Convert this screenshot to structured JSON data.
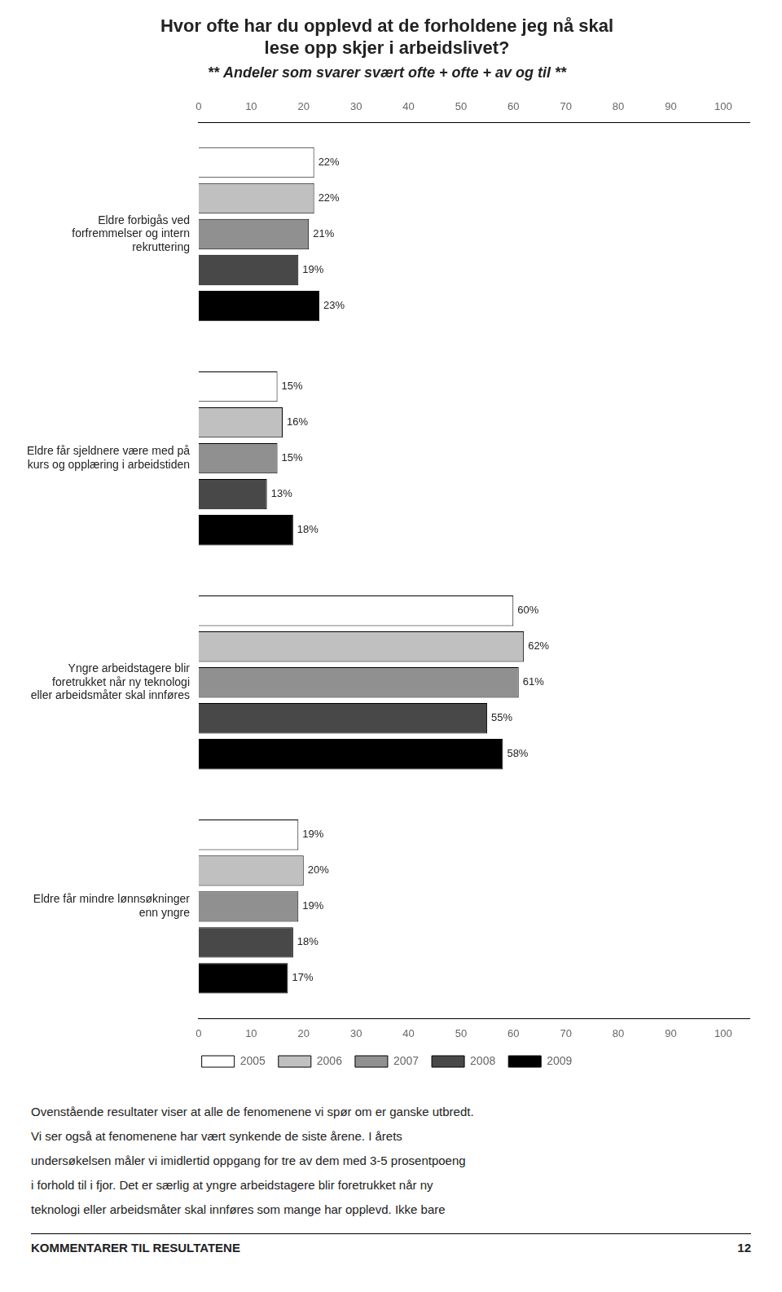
{
  "chart_data": {
    "type": "bar",
    "orientation": "horizontal",
    "title": [
      "Hvor ofte har du opplevd at de forholdene jeg nå skal",
      "lese opp skjer i arbeidslivet?"
    ],
    "subtitle": "** Andeler som svarer svært ofte + ofte + av og til **",
    "categories": [
      "Eldre forbigås ved\nforfremmelser og intern\nrekruttering",
      "Eldre får sjeldnere være med på\nkurs og opplæring i arbeidstiden",
      "Yngre arbeidstagere blir\nforetrukket når ny teknologi\neller arbeidsmåter skal innføres",
      "Eldre får mindre lønnsøkninger\nenn yngre"
    ],
    "series": [
      {
        "name": "2005",
        "color": "#ffffff",
        "values": [
          22,
          15,
          60,
          19
        ],
        "value_labels": [
          "22%",
          "15%",
          "60%",
          "19%"
        ]
      },
      {
        "name": "2006",
        "color": "#c0c0c0",
        "values": [
          22,
          16,
          62,
          20
        ],
        "value_labels": [
          "22%",
          "16%",
          "62%",
          "20%"
        ]
      },
      {
        "name": "2007",
        "color": "#909090",
        "values": [
          21,
          15,
          61,
          19
        ],
        "value_labels": [
          "21%",
          "15%",
          "61%",
          "19%"
        ]
      },
      {
        "name": "2008",
        "color": "#484848",
        "values": [
          19,
          13,
          55,
          18
        ],
        "value_labels": [
          "19%",
          "13%",
          "55%",
          "18%"
        ]
      },
      {
        "name": "2009",
        "color": "#000000",
        "values": [
          23,
          18,
          58,
          17
        ],
        "value_labels": [
          "23%",
          "18%",
          "58%",
          "17%"
        ]
      }
    ],
    "xlim": [
      0,
      105
    ],
    "xticks": [
      0,
      10,
      20,
      30,
      40,
      50,
      60,
      70,
      80,
      90,
      100
    ],
    "grid": false,
    "legend": "bottom",
    "data_labels": true,
    "footer_texts": [
      "Ovenstående resultater viser at alle de fenomenene vi spør om er ganske utbredt.",
      "Vi ser også at fenomenene har vært synkende de siste årene. I årets",
      "undersøkelsen måler vi imidlertid oppgang for tre av dem med 3-5 prosentpoeng",
      "i forhold til i fjor. Det er særlig at yngre arbeidstagere blir foretrukket når ny",
      "teknologi eller arbeidsmåter skal innføres som mange har opplevd.  Ikke bare"
    ],
    "footer_label": "KOMMENTARER TIL RESULTATENE",
    "page_number": "12"
  }
}
